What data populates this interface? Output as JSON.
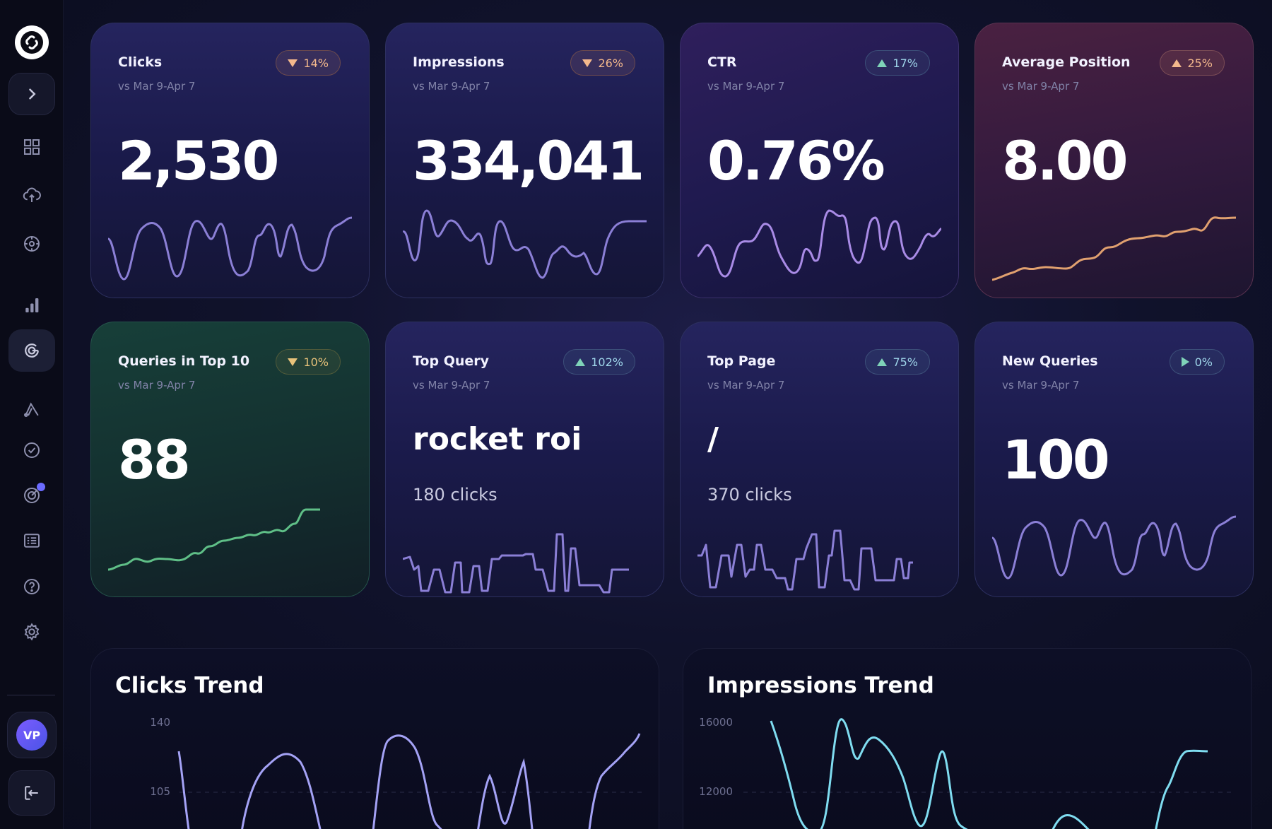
{
  "sidebar": {
    "logo_icon": "link-logo-icon",
    "avatar_initials": "VP",
    "items": [
      {
        "name": "expand-icon"
      },
      {
        "name": "grid-icon"
      },
      {
        "name": "cloud-upload-icon"
      },
      {
        "name": "clock-target-icon"
      },
      {
        "name": "bar-chart-icon"
      },
      {
        "name": "google-icon"
      },
      {
        "name": "ads-icon"
      },
      {
        "name": "check-circle-icon"
      },
      {
        "name": "goal-icon"
      },
      {
        "name": "list-icon"
      },
      {
        "name": "help-icon"
      },
      {
        "name": "settings-icon"
      }
    ]
  },
  "cards": [
    {
      "title": "Clicks",
      "sub": "vs Mar 9-Apr 7",
      "badge": "14%",
      "direction": "down",
      "value": "2,530",
      "line_color": "#8b7fd6"
    },
    {
      "title": "Impressions",
      "sub": "vs Mar 9-Apr 7",
      "badge": "26%",
      "direction": "down",
      "value": "334,041",
      "line_color": "#8b7fd6"
    },
    {
      "title": "CTR",
      "sub": "vs Mar 9-Apr 7",
      "badge": "17%",
      "direction": "up",
      "value": "0.76%",
      "line_color": "#a98be6"
    },
    {
      "title": "Average Position",
      "sub": "vs Mar 9-Apr 7",
      "badge": "25%",
      "direction": "up",
      "value": "8.00",
      "line_color": "#e0a06f"
    },
    {
      "title": "Queries in Top 10",
      "sub": "vs Mar 9-Apr 7",
      "badge": "10%",
      "direction": "down",
      "value": "88",
      "line_color": "#5fbf87"
    },
    {
      "title": "Top Query",
      "sub": "vs Mar 9-Apr 7",
      "badge": "102%",
      "direction": "up",
      "value": "rocket roi",
      "detail": "180 clicks",
      "line_color": "#8b7fd6"
    },
    {
      "title": "Top Page",
      "sub": "vs Mar 9-Apr 7",
      "badge": "75%",
      "direction": "up",
      "value": "/",
      "detail": "370 clicks",
      "line_color": "#8b7fd6"
    },
    {
      "title": "New Queries",
      "sub": "vs Mar 9-Apr 7",
      "badge": "0%",
      "direction": "neutral",
      "value": "100",
      "line_color": "#8b7fd6"
    }
  ],
  "trends": {
    "clicks": {
      "title": "Clicks Trend",
      "ticks": [
        "140",
        "105"
      ],
      "line_color": "#a4a2f5"
    },
    "impressions": {
      "title": "Impressions Trend",
      "ticks": [
        "16000",
        "12000"
      ],
      "line_color": "#7fdcf0"
    }
  }
}
